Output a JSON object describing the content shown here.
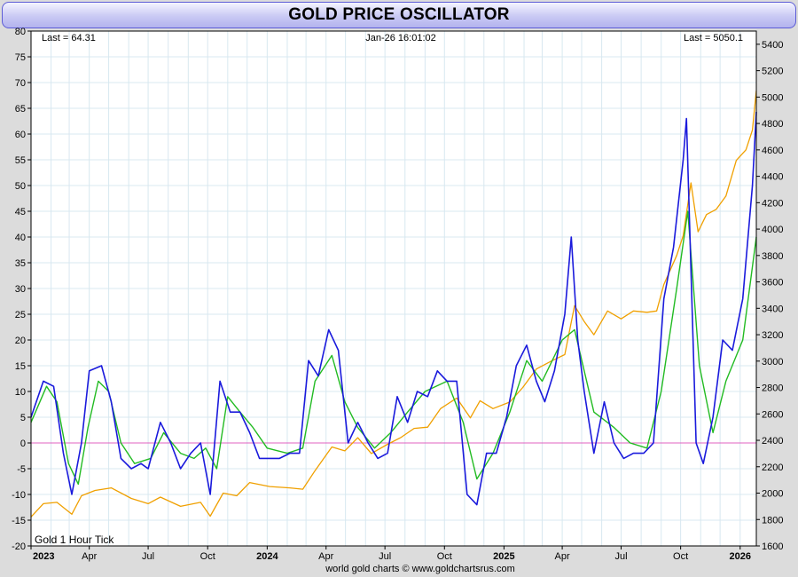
{
  "title": "GOLD PRICE OSCILLATOR",
  "info": {
    "last_left": "Last = 64.31",
    "timestamp": "Jan-26  16:01:02",
    "last_right": "Last = 5050.1"
  },
  "legend": "Gold 1 Hour Tick",
  "credit": "world gold charts © www.goldchartsrus.com",
  "colors": {
    "oscillator": "#1a1adc",
    "signal": "#22bb22",
    "price": "#f0a000",
    "zero_line": "#e060c0",
    "grid": "#d8e8f0"
  },
  "chart_data": {
    "type": "line",
    "title": "GOLD PRICE OSCILLATOR",
    "x_axis": {
      "range": [
        "2023-01-01",
        "2026-01-26"
      ],
      "ticks": [
        {
          "label": "2023",
          "date": "2023-01-01",
          "year": true
        },
        {
          "label": "Apr",
          "date": "2023-04-01"
        },
        {
          "label": "Jul",
          "date": "2023-07-01"
        },
        {
          "label": "Oct",
          "date": "2023-10-01"
        },
        {
          "label": "2024",
          "date": "2024-01-01",
          "year": true
        },
        {
          "label": "Apr",
          "date": "2024-04-01"
        },
        {
          "label": "Jul",
          "date": "2024-07-01"
        },
        {
          "label": "Oct",
          "date": "2024-10-01"
        },
        {
          "label": "2025",
          "date": "2025-01-01",
          "year": true
        },
        {
          "label": "Apr",
          "date": "2025-04-01"
        },
        {
          "label": "Jul",
          "date": "2025-07-01"
        },
        {
          "label": "Oct",
          "date": "2025-10-01"
        },
        {
          "label": "2026",
          "date": "2026-01-01",
          "year": true
        }
      ]
    },
    "y_left": {
      "range": [
        -20,
        80
      ],
      "ticks": [
        -20,
        -15,
        -10,
        -5,
        0,
        5,
        10,
        15,
        20,
        25,
        30,
        35,
        40,
        45,
        50,
        55,
        60,
        65,
        70,
        75,
        80
      ]
    },
    "y_right": {
      "range": [
        1600,
        5500
      ],
      "ticks": [
        1600,
        1800,
        2000,
        2200,
        2400,
        2600,
        2800,
        3000,
        3200,
        3400,
        3600,
        3800,
        4000,
        4200,
        4400,
        4600,
        4800,
        5000,
        5200,
        5400
      ]
    },
    "grid": true,
    "zero_line": 0,
    "series": [
      {
        "axis": "left",
        "color": "#1a1adc",
        "points": [
          [
            "2023-01-01",
            5
          ],
          [
            "2023-01-20",
            12
          ],
          [
            "2023-02-05",
            11
          ],
          [
            "2023-02-20",
            -2
          ],
          [
            "2023-03-05",
            -10
          ],
          [
            "2023-03-20",
            0
          ],
          [
            "2023-04-01",
            14
          ],
          [
            "2023-04-20",
            15
          ],
          [
            "2023-05-05",
            8
          ],
          [
            "2023-05-20",
            -3
          ],
          [
            "2023-06-05",
            -5
          ],
          [
            "2023-06-20",
            -4
          ],
          [
            "2023-07-01",
            -5
          ],
          [
            "2023-07-20",
            4
          ],
          [
            "2023-08-05",
            0
          ],
          [
            "2023-08-20",
            -5
          ],
          [
            "2023-09-05",
            -2
          ],
          [
            "2023-09-20",
            0
          ],
          [
            "2023-10-05",
            -10
          ],
          [
            "2023-10-20",
            12
          ],
          [
            "2023-11-05",
            6
          ],
          [
            "2023-11-20",
            6
          ],
          [
            "2023-12-05",
            2
          ],
          [
            "2023-12-20",
            -3
          ],
          [
            "2024-01-05",
            -3
          ],
          [
            "2024-01-20",
            -3
          ],
          [
            "2024-02-05",
            -2
          ],
          [
            "2024-02-20",
            -2
          ],
          [
            "2024-03-05",
            16
          ],
          [
            "2024-03-20",
            13
          ],
          [
            "2024-04-05",
            22
          ],
          [
            "2024-04-20",
            18
          ],
          [
            "2024-05-05",
            0
          ],
          [
            "2024-05-20",
            4
          ],
          [
            "2024-06-05",
            0
          ],
          [
            "2024-06-20",
            -3
          ],
          [
            "2024-07-05",
            -2
          ],
          [
            "2024-07-20",
            9
          ],
          [
            "2024-08-05",
            4
          ],
          [
            "2024-08-20",
            10
          ],
          [
            "2024-09-05",
            9
          ],
          [
            "2024-09-20",
            14
          ],
          [
            "2024-10-05",
            12
          ],
          [
            "2024-10-20",
            12
          ],
          [
            "2024-11-05",
            -10
          ],
          [
            "2024-11-20",
            -12
          ],
          [
            "2024-12-05",
            -2
          ],
          [
            "2024-12-20",
            -2
          ],
          [
            "2025-01-05",
            5
          ],
          [
            "2025-01-20",
            15
          ],
          [
            "2025-02-05",
            19
          ],
          [
            "2025-02-20",
            12
          ],
          [
            "2025-03-05",
            8
          ],
          [
            "2025-03-20",
            14
          ],
          [
            "2025-04-05",
            25
          ],
          [
            "2025-04-15",
            40
          ],
          [
            "2025-04-25",
            20
          ],
          [
            "2025-05-05",
            10
          ],
          [
            "2025-05-20",
            -2
          ],
          [
            "2025-06-05",
            8
          ],
          [
            "2025-06-20",
            0
          ],
          [
            "2025-07-05",
            -3
          ],
          [
            "2025-07-20",
            -2
          ],
          [
            "2025-08-05",
            -2
          ],
          [
            "2025-08-20",
            0
          ],
          [
            "2025-09-05",
            28
          ],
          [
            "2025-09-20",
            38
          ],
          [
            "2025-10-05",
            55
          ],
          [
            "2025-10-10",
            63
          ],
          [
            "2025-10-25",
            0
          ],
          [
            "2025-11-05",
            -4
          ],
          [
            "2025-11-20",
            5
          ],
          [
            "2025-12-05",
            20
          ],
          [
            "2025-12-20",
            18
          ],
          [
            "2026-01-05",
            28
          ],
          [
            "2026-01-20",
            50
          ],
          [
            "2026-01-26",
            64.31
          ]
        ]
      },
      {
        "axis": "left",
        "color": "#22bb22",
        "points": [
          [
            "2023-01-01",
            4
          ],
          [
            "2023-01-25",
            11
          ],
          [
            "2023-02-10",
            8
          ],
          [
            "2023-02-28",
            -4
          ],
          [
            "2023-03-15",
            -8
          ],
          [
            "2023-03-30",
            3
          ],
          [
            "2023-04-15",
            12
          ],
          [
            "2023-05-01",
            10
          ],
          [
            "2023-05-20",
            0
          ],
          [
            "2023-06-10",
            -4
          ],
          [
            "2023-07-05",
            -3
          ],
          [
            "2023-07-25",
            2
          ],
          [
            "2023-08-20",
            -2
          ],
          [
            "2023-09-10",
            -3
          ],
          [
            "2023-09-28",
            -1
          ],
          [
            "2023-10-15",
            -5
          ],
          [
            "2023-11-01",
            9
          ],
          [
            "2023-11-20",
            6
          ],
          [
            "2023-12-10",
            3
          ],
          [
            "2024-01-01",
            -1
          ],
          [
            "2024-02-01",
            -2
          ],
          [
            "2024-02-25",
            -1
          ],
          [
            "2024-03-15",
            12
          ],
          [
            "2024-04-10",
            17
          ],
          [
            "2024-04-30",
            8
          ],
          [
            "2024-05-20",
            3
          ],
          [
            "2024-06-15",
            -1
          ],
          [
            "2024-07-10",
            2
          ],
          [
            "2024-08-05",
            6
          ],
          [
            "2024-09-01",
            10
          ],
          [
            "2024-10-05",
            12
          ],
          [
            "2024-10-30",
            4
          ],
          [
            "2024-11-20",
            -7
          ],
          [
            "2024-12-15",
            -2
          ],
          [
            "2025-01-10",
            6
          ],
          [
            "2025-02-05",
            16
          ],
          [
            "2025-03-01",
            12
          ],
          [
            "2025-04-01",
            20
          ],
          [
            "2025-04-20",
            22
          ],
          [
            "2025-05-20",
            6
          ],
          [
            "2025-06-20",
            3
          ],
          [
            "2025-07-15",
            0
          ],
          [
            "2025-08-10",
            -1
          ],
          [
            "2025-09-01",
            10
          ],
          [
            "2025-09-25",
            30
          ],
          [
            "2025-10-12",
            45
          ],
          [
            "2025-10-30",
            15
          ],
          [
            "2025-11-20",
            2
          ],
          [
            "2025-12-10",
            12
          ],
          [
            "2026-01-05",
            20
          ],
          [
            "2026-01-26",
            40
          ]
        ]
      },
      {
        "axis": "right",
        "color": "#f0a000",
        "points": [
          [
            "2023-01-01",
            1820
          ],
          [
            "2023-01-20",
            1920
          ],
          [
            "2023-02-10",
            1930
          ],
          [
            "2023-03-05",
            1840
          ],
          [
            "2023-03-20",
            1980
          ],
          [
            "2023-04-10",
            2020
          ],
          [
            "2023-05-05",
            2040
          ],
          [
            "2023-06-05",
            1960
          ],
          [
            "2023-07-01",
            1920
          ],
          [
            "2023-07-20",
            1970
          ],
          [
            "2023-08-20",
            1900
          ],
          [
            "2023-09-20",
            1930
          ],
          [
            "2023-10-05",
            1825
          ],
          [
            "2023-10-25",
            2000
          ],
          [
            "2023-11-15",
            1980
          ],
          [
            "2023-12-05",
            2080
          ],
          [
            "2024-01-05",
            2050
          ],
          [
            "2024-02-05",
            2040
          ],
          [
            "2024-02-25",
            2030
          ],
          [
            "2024-03-15",
            2170
          ],
          [
            "2024-04-10",
            2350
          ],
          [
            "2024-04-30",
            2320
          ],
          [
            "2024-05-20",
            2420
          ],
          [
            "2024-06-10",
            2300
          ],
          [
            "2024-07-05",
            2370
          ],
          [
            "2024-07-25",
            2420
          ],
          [
            "2024-08-15",
            2490
          ],
          [
            "2024-09-05",
            2500
          ],
          [
            "2024-09-25",
            2640
          ],
          [
            "2024-10-20",
            2720
          ],
          [
            "2024-11-10",
            2570
          ],
          [
            "2024-11-25",
            2700
          ],
          [
            "2024-12-15",
            2640
          ],
          [
            "2025-01-10",
            2690
          ],
          [
            "2025-01-30",
            2800
          ],
          [
            "2025-02-20",
            2940
          ],
          [
            "2025-03-15",
            3000
          ],
          [
            "2025-04-05",
            3050
          ],
          [
            "2025-04-20",
            3420
          ],
          [
            "2025-05-05",
            3300
          ],
          [
            "2025-05-20",
            3200
          ],
          [
            "2025-06-10",
            3380
          ],
          [
            "2025-07-01",
            3320
          ],
          [
            "2025-07-20",
            3380
          ],
          [
            "2025-08-10",
            3370
          ],
          [
            "2025-08-25",
            3380
          ],
          [
            "2025-09-05",
            3580
          ],
          [
            "2025-09-25",
            3800
          ],
          [
            "2025-10-05",
            3950
          ],
          [
            "2025-10-17",
            4350
          ],
          [
            "2025-10-28",
            3980
          ],
          [
            "2025-11-10",
            4110
          ],
          [
            "2025-11-25",
            4150
          ],
          [
            "2025-12-10",
            4250
          ],
          [
            "2025-12-26",
            4520
          ],
          [
            "2026-01-10",
            4600
          ],
          [
            "2026-01-20",
            4750
          ],
          [
            "2026-01-26",
            5050.1
          ]
        ]
      }
    ]
  }
}
